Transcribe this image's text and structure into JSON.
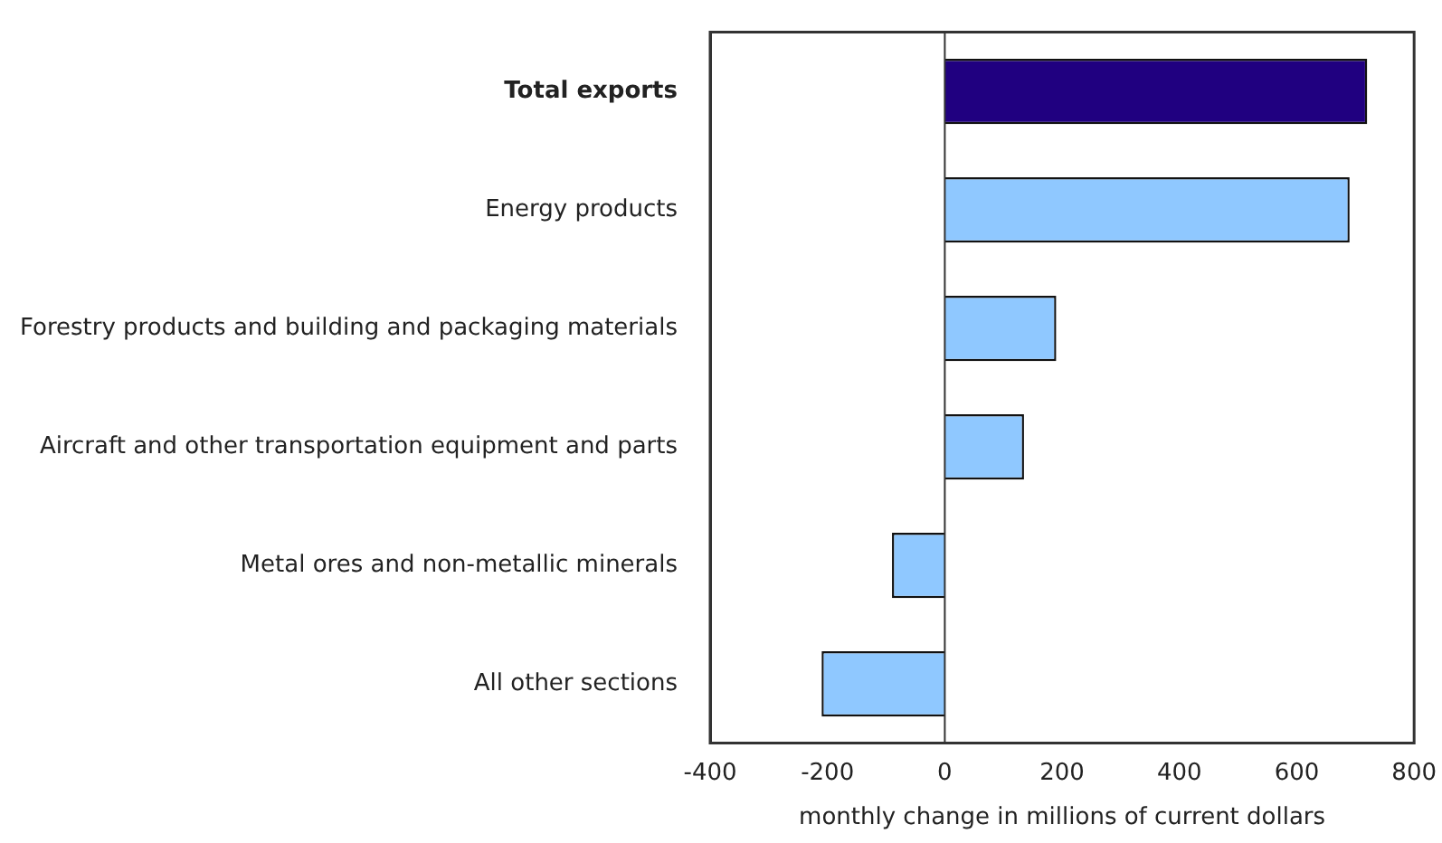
{
  "chart_data": {
    "type": "bar",
    "orientation": "horizontal",
    "xlabel": "monthly change in millions of current dollars",
    "categories": [
      "Total exports",
      "Energy products",
      "Forestry products and building and packaging materials",
      "Aircraft and other transportation equipment and parts",
      "Metal ores and non-metallic minerals",
      "All other sections"
    ],
    "values": [
      720,
      690,
      190,
      135,
      -90,
      -210
    ],
    "colors": [
      "#200080",
      "#8fc8ff",
      "#8fc8ff",
      "#8fc8ff",
      "#8fc8ff",
      "#8fc8ff"
    ],
    "xlim": [
      -400,
      800
    ],
    "xticks": [
      -400,
      -200,
      0,
      200,
      400,
      600,
      800
    ],
    "ref_lines": [
      {
        "axis": "x",
        "value": 0
      }
    ],
    "grid": false,
    "legend": false
  }
}
